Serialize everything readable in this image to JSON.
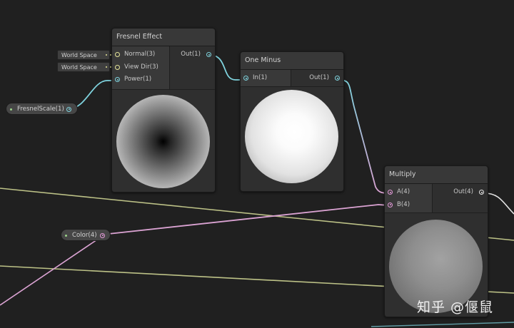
{
  "colors": {
    "background": "#202020",
    "wire_float": "#7fd3de",
    "wire_vector": "#d9df9a",
    "wire_color": "#dba3d3"
  },
  "world_fields": [
    {
      "label": "World Space"
    },
    {
      "label": "World Space"
    }
  ],
  "properties": {
    "fresnel_scale": {
      "label": "FresnelScale(1)"
    },
    "color": {
      "label": "Color(4)"
    }
  },
  "nodes": {
    "fresnel": {
      "title": "Fresnel Effect",
      "inputs": [
        {
          "label": "Normal(3)",
          "port_icon": "vector-port-icon"
        },
        {
          "label": "View Dir(3)",
          "port_icon": "vector-port-icon"
        },
        {
          "label": "Power(1)",
          "port_icon": "float-port-icon"
        }
      ],
      "output": {
        "label": "Out(1)",
        "port_icon": "float-port-icon"
      },
      "preview": "fresnel-preview-sphere"
    },
    "one_minus": {
      "title": "One Minus",
      "inputs": [
        {
          "label": "In(1)",
          "port_icon": "float-port-icon"
        }
      ],
      "output": {
        "label": "Out(1)",
        "port_icon": "float-port-icon"
      },
      "preview": "one-minus-preview-sphere"
    },
    "multiply": {
      "title": "Multiply",
      "inputs": [
        {
          "label": "A(4)",
          "port_icon": "color-port-icon"
        },
        {
          "label": "B(4)",
          "port_icon": "color-port-icon"
        }
      ],
      "output": {
        "label": "Out(4)",
        "port_icon": "output-port-icon"
      },
      "preview": "multiply-preview-sphere"
    }
  },
  "watermark": "知乎 @偃鼠"
}
